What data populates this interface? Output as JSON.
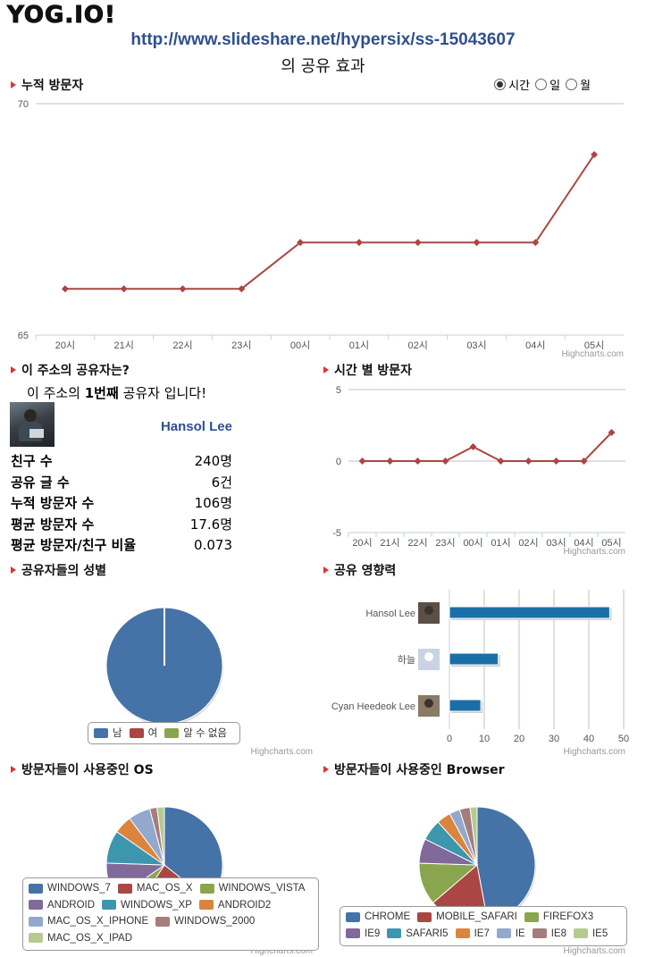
{
  "logo": "YOG.IO!",
  "header": {
    "url": "http://www.slideshare.net/hypersix/ss-15043607",
    "subtitle": "의 공유 효과"
  },
  "highcharts_credit": "Highcharts.com",
  "cumulative": {
    "title": "누적 방문자",
    "radio_options": [
      {
        "label": "시간",
        "selected": true
      },
      {
        "label": "일",
        "selected": false
      },
      {
        "label": "월",
        "selected": false
      }
    ]
  },
  "sharer": {
    "title": "이 주소의 공유자는?",
    "intro_prefix": "이 주소의 ",
    "intro_rank": "1번째",
    "intro_suffix": " 공유자 입니다!",
    "name": "Hansol Lee",
    "stats": [
      {
        "label": "친구 수",
        "value": "240명"
      },
      {
        "label": "공유 글 수",
        "value": "6건"
      },
      {
        "label": "누적 방문자 수",
        "value": "106명"
      },
      {
        "label": "평균 방문자 수",
        "value": "17.6명"
      },
      {
        "label": "평균 방문자/친구 비율",
        "value": "0.073"
      }
    ]
  },
  "hourly": {
    "title": "시간 별 방문자"
  },
  "gender": {
    "title": "공유자들의 성별",
    "legend": [
      "남",
      "여",
      "알 수 없음"
    ]
  },
  "influence": {
    "title": "공유 영향력"
  },
  "os": {
    "title": "방문자들이 사용중인 OS"
  },
  "browser": {
    "title": "방문자들이 사용중인 Browser"
  },
  "colors": {
    "series": [
      "#4572a7",
      "#aa4643",
      "#89a54e",
      "#80699b",
      "#3d96ae",
      "#db843d",
      "#92a8cd",
      "#a47d7c",
      "#b5ca92"
    ],
    "line": "#aa4643",
    "bar": "#1b6fa8",
    "url": "#2f4f8f",
    "bullet": "#dd3333"
  },
  "chart_data": [
    {
      "id": "cumulative",
      "type": "line",
      "categories": [
        "20시",
        "21시",
        "22시",
        "23시",
        "00시",
        "01시",
        "02시",
        "03시",
        "04시",
        "05시"
      ],
      "values": [
        66,
        66,
        66,
        66,
        67,
        67,
        67,
        67,
        67,
        68.9
      ],
      "ylim": [
        65,
        70
      ],
      "yticks": [
        "65",
        "70"
      ],
      "grid": true
    },
    {
      "id": "hourly",
      "type": "line",
      "categories": [
        "20시",
        "21시",
        "22시",
        "23시",
        "00시",
        "01시",
        "02시",
        "03시",
        "04시",
        "05시"
      ],
      "values": [
        0,
        0,
        0,
        0,
        1,
        0,
        0,
        0,
        0,
        2
      ],
      "ylim": [
        -5,
        5
      ],
      "yticks": [
        "-5",
        "0",
        "5"
      ],
      "grid": true
    },
    {
      "id": "gender",
      "type": "pie",
      "series": [
        {
          "name": "남",
          "value": 100
        },
        {
          "name": "여",
          "value": 0
        },
        {
          "name": "알 수 없음",
          "value": 0
        }
      ]
    },
    {
      "id": "influence",
      "type": "bar",
      "categories": [
        "Hansol Lee",
        "하늘",
        "Cyan Heedeok Lee"
      ],
      "values": [
        46,
        14,
        9
      ],
      "xlim": [
        0,
        50
      ],
      "xticks": [
        "0",
        "10",
        "20",
        "30",
        "40",
        "50"
      ],
      "grid": true
    },
    {
      "id": "os",
      "type": "pie",
      "legend_placement": "bottom",
      "series": [
        {
          "name": "WINDOWS_7",
          "value": 35
        },
        {
          "name": "MAC_OS_X",
          "value": 23
        },
        {
          "name": "WINDOWS_VISTA",
          "value": 6
        },
        {
          "name": "ANDROID",
          "value": 10
        },
        {
          "name": "WINDOWS_XP",
          "value": 9
        },
        {
          "name": "ANDROID2",
          "value": 5
        },
        {
          "name": "MAC_OS_X_IPHONE",
          "value": 6
        },
        {
          "name": "WINDOWS_2000",
          "value": 2
        },
        {
          "name": "MAC_OS_X_IPAD",
          "value": 2
        }
      ]
    },
    {
      "id": "browser",
      "type": "pie",
      "legend_placement": "bottom",
      "series": [
        {
          "name": "CHROME",
          "value": 48
        },
        {
          "name": "MOBILE_SAFARI",
          "value": 17
        },
        {
          "name": "FIREFOX3",
          "value": 12
        },
        {
          "name": "IE9",
          "value": 7
        },
        {
          "name": "SAFARI5",
          "value": 6
        },
        {
          "name": "IE7",
          "value": 4
        },
        {
          "name": "IE",
          "value": 3
        },
        {
          "name": "IE8",
          "value": 3
        },
        {
          "name": "IE5",
          "value": 2
        }
      ]
    }
  ]
}
